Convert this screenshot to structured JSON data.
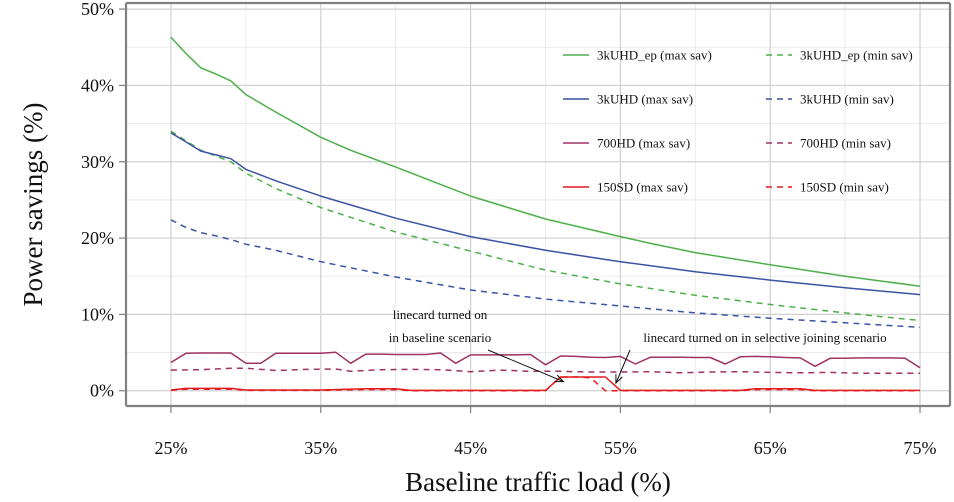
{
  "chart_data": {
    "type": "line",
    "xlabel": "Baseline traffic load (%)",
    "ylabel": "Power savings (%)",
    "xlim": [
      22,
      77
    ],
    "ylim": [
      -2,
      50.8
    ],
    "x_ticks": [
      25,
      35,
      45,
      55,
      65,
      75
    ],
    "x_tick_labels": [
      "25%",
      "35%",
      "45%",
      "55%",
      "65%",
      "75%"
    ],
    "y_ticks": [
      0,
      10,
      20,
      30,
      40,
      50
    ],
    "y_tick_labels": [
      "0%",
      "10%",
      "20%",
      "30%",
      "40%",
      "50%"
    ],
    "grid": true,
    "legend_position": "top-right",
    "series": [
      {
        "name": "3kUHD_ep (max sav)",
        "color": "#4daf4a",
        "dash": "solid",
        "x": [
          25,
          26,
          27,
          28,
          29,
          30,
          32,
          35,
          37,
          40,
          45,
          50,
          55,
          57,
          60,
          65,
          70,
          75
        ],
        "y": [
          46.3,
          44.2,
          42.3,
          41.5,
          40.6,
          38.8,
          36.5,
          33.2,
          31.5,
          29.3,
          25.5,
          22.5,
          20.2,
          19.3,
          18.1,
          16.5,
          15.0,
          13.7
        ]
      },
      {
        "name": "3kUHD_ep (min sav)",
        "color": "#4daf4a",
        "dash": "dashed",
        "x": [
          25,
          27,
          29,
          30,
          32,
          35,
          40,
          45,
          50,
          55,
          60,
          65,
          70,
          75
        ],
        "y": [
          34.0,
          31.5,
          30.0,
          28.5,
          26.5,
          24.0,
          20.8,
          18.3,
          15.8,
          14.0,
          12.5,
          11.3,
          10.2,
          9.2
        ]
      },
      {
        "name": "3kUHD (max sav)",
        "color": "#3a53a4",
        "dash": "solid",
        "x": [
          25,
          26,
          27,
          28,
          29,
          30,
          32,
          35,
          40,
          45,
          50,
          55,
          60,
          65,
          70,
          75
        ],
        "y": [
          33.8,
          32.6,
          31.4,
          30.9,
          30.4,
          29.0,
          27.5,
          25.5,
          22.6,
          20.2,
          18.4,
          16.9,
          15.6,
          14.5,
          13.5,
          12.6
        ]
      },
      {
        "name": "3kUHD (min sav)",
        "color": "#3a53a4",
        "dash": "dashed",
        "x": [
          25,
          26,
          27,
          28,
          29,
          30,
          32,
          35,
          40,
          45,
          50,
          55,
          60,
          65,
          70,
          75
        ],
        "y": [
          22.4,
          21.4,
          20.7,
          20.3,
          19.8,
          19.2,
          18.4,
          16.9,
          14.9,
          13.2,
          12.0,
          11.1,
          10.2,
          9.5,
          8.9,
          8.3
        ]
      },
      {
        "name": "700HD (max sav)",
        "color": "#a03262",
        "dash": "solid",
        "x": [
          25,
          26,
          27,
          28,
          29,
          30,
          31,
          32,
          33,
          34,
          35,
          36,
          37,
          38,
          39,
          40,
          41,
          42,
          43,
          44,
          45,
          46,
          47,
          48,
          49,
          50,
          51,
          52,
          53,
          54,
          55,
          56,
          57,
          58,
          59,
          60,
          61,
          62,
          63,
          64,
          65,
          66,
          67,
          68,
          69,
          70,
          71,
          72,
          73,
          74,
          75
        ],
        "y": [
          3.7,
          4.9,
          4.95,
          4.95,
          4.95,
          3.6,
          3.6,
          4.9,
          4.9,
          4.9,
          4.9,
          5.05,
          3.6,
          4.8,
          4.8,
          4.75,
          4.75,
          4.75,
          4.95,
          3.6,
          4.7,
          4.7,
          4.7,
          4.7,
          4.75,
          3.4,
          4.55,
          4.5,
          4.4,
          4.35,
          4.5,
          3.5,
          4.4,
          4.4,
          4.4,
          4.35,
          4.35,
          3.5,
          4.45,
          4.5,
          4.45,
          4.35,
          4.3,
          3.2,
          4.25,
          4.25,
          4.3,
          4.3,
          4.3,
          4.25,
          3.0
        ]
      },
      {
        "name": "700HD (min sav)",
        "color": "#a03262",
        "dash": "dashed",
        "x": [
          25,
          27,
          29,
          30,
          32,
          34,
          36,
          37,
          39,
          41,
          43,
          45,
          47,
          49,
          51,
          53,
          55,
          57,
          59,
          61,
          63,
          65,
          67,
          69,
          71,
          73,
          75
        ],
        "y": [
          2.7,
          2.75,
          2.95,
          2.95,
          2.65,
          2.8,
          2.85,
          2.55,
          2.75,
          2.8,
          2.75,
          2.5,
          2.7,
          2.55,
          2.55,
          2.45,
          2.45,
          2.5,
          2.35,
          2.45,
          2.5,
          2.4,
          2.35,
          2.4,
          2.3,
          2.3,
          2.3
        ]
      },
      {
        "name": "150SD (max sav)",
        "color": "#e41a1c",
        "dash": "solid",
        "x": [
          25,
          26,
          27,
          28,
          29,
          30,
          31,
          35,
          38,
          40,
          41,
          45,
          50,
          51,
          52,
          53,
          54,
          55,
          58,
          63,
          64,
          65,
          66,
          67,
          68,
          72,
          75
        ],
        "y": [
          0.1,
          0.3,
          0.3,
          0.3,
          0.3,
          0.1,
          0.1,
          0.1,
          0.25,
          0.25,
          0.05,
          0.05,
          0.05,
          1.8,
          1.8,
          1.8,
          1.8,
          0.05,
          0.05,
          0.05,
          0.25,
          0.25,
          0.25,
          0.25,
          0.05,
          0.05,
          0.05
        ]
      },
      {
        "name": "150SD (min sav)",
        "color": "#e41a1c",
        "dash": "dashed",
        "x": [
          25,
          26,
          27,
          28,
          29,
          30,
          31,
          35,
          38,
          40,
          41,
          45,
          50,
          51,
          52,
          53,
          54,
          55,
          58,
          63,
          64,
          65,
          66,
          67,
          68,
          72,
          75
        ],
        "y": [
          0.05,
          0.2,
          0.2,
          0.2,
          0.2,
          0.05,
          0.05,
          0.05,
          0.15,
          0.15,
          0.0,
          0.0,
          0.0,
          1.8,
          1.8,
          1.7,
          0.0,
          0.0,
          0.0,
          0.0,
          0.15,
          0.15,
          0.15,
          0.15,
          0.0,
          0.0,
          0.0
        ]
      }
    ],
    "annotations": [
      {
        "text_lines": [
          "linecard turned on",
          "in baseline scenario"
        ],
        "arrow_to": [
          51.2,
          1.2
        ]
      },
      {
        "text_lines": [
          "linecard turned on in selective joining scenario"
        ],
        "arrow_to": [
          54.7,
          1.0
        ]
      }
    ]
  }
}
